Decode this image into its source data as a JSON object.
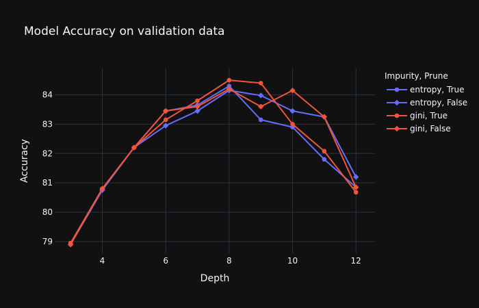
{
  "chart_data": {
    "type": "line",
    "title": "Model Accuracy on validation data",
    "xlabel": "Depth",
    "ylabel": "Accuracy",
    "xlim": [
      2.5,
      12.6
    ],
    "ylim": [
      78.6,
      84.9
    ],
    "xticks": [
      4,
      6,
      8,
      10,
      12
    ],
    "yticks": [
      79,
      80,
      81,
      82,
      83,
      84
    ],
    "grid": true,
    "legend_title": "Impurity, Prune",
    "legend_position": "right",
    "x": [
      3,
      4,
      5,
      6,
      7,
      8,
      9,
      10,
      11,
      12
    ],
    "series": [
      {
        "name": "entropy, True",
        "color": "#636efa",
        "marker": "circle",
        "values": [
          78.9,
          80.8,
          82.2,
          83.45,
          83.65,
          84.3,
          83.15,
          82.9,
          81.8,
          80.85
        ]
      },
      {
        "name": "entropy, False",
        "color": "#636efa",
        "marker": "diamond",
        "values": [
          78.9,
          80.75,
          82.2,
          82.95,
          83.45,
          84.15,
          83.98,
          83.45,
          83.25,
          81.2
        ]
      },
      {
        "name": "gini, True",
        "color": "#ef553b",
        "marker": "circle",
        "values": [
          78.95,
          80.8,
          82.2,
          83.15,
          83.8,
          84.5,
          84.4,
          83.0,
          82.08,
          80.68
        ]
      },
      {
        "name": "gini, False",
        "color": "#ef553b",
        "marker": "diamond",
        "values": [
          78.9,
          80.8,
          82.2,
          83.45,
          83.6,
          84.2,
          83.6,
          84.15,
          83.25,
          80.85
        ]
      }
    ]
  }
}
